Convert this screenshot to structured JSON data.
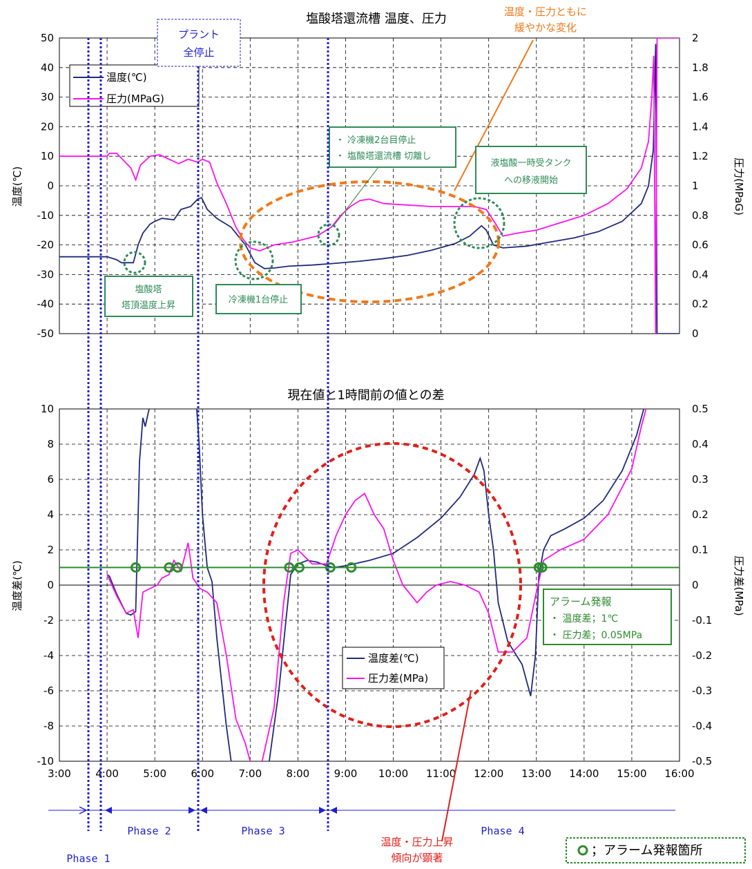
{
  "chart_data": [
    {
      "type": "line",
      "title": "塩酸塔還流槽 温度、圧力",
      "ylabel": "温度(℃)",
      "y2label": "圧力(MPaG)",
      "ylim": [
        -50,
        50
      ],
      "y2lim": [
        0,
        2
      ],
      "yticks": [
        "50",
        "40",
        "30",
        "20",
        "10",
        "0",
        "-10",
        "-20",
        "-30",
        "-40",
        "-50"
      ],
      "y2ticks": [
        "2",
        "1.8",
        "1.6",
        "1.4",
        "1.2",
        "1",
        "0.8",
        "0.6",
        "0.4",
        "0.2",
        "0"
      ],
      "legend_position": "top-left",
      "series": [
        {
          "name": "温度(℃)",
          "color": "#1f2a7a",
          "axis": "left",
          "points": [
            [
              3.0,
              -24
            ],
            [
              3.9,
              -24
            ],
            [
              4.0,
              -24
            ],
            [
              4.2,
              -25
            ],
            [
              4.3,
              -26
            ],
            [
              4.55,
              -26
            ],
            [
              4.65,
              -20
            ],
            [
              4.75,
              -16
            ],
            [
              4.9,
              -13
            ],
            [
              5.0,
              -12
            ],
            [
              5.15,
              -11
            ],
            [
              5.4,
              -11.5
            ],
            [
              5.55,
              -8
            ],
            [
              5.75,
              -7
            ],
            [
              5.9,
              -4.5
            ],
            [
              5.98,
              -4
            ],
            [
              6.1,
              -8
            ],
            [
              6.3,
              -11
            ],
            [
              6.6,
              -14
            ],
            [
              6.9,
              -20
            ],
            [
              7.1,
              -26
            ],
            [
              7.3,
              -28
            ],
            [
              7.5,
              -27.8
            ],
            [
              7.8,
              -27.2
            ],
            [
              8.3,
              -26.8
            ],
            [
              8.8,
              -26.2
            ],
            [
              9.3,
              -25.5
            ],
            [
              9.8,
              -24.6
            ],
            [
              10.3,
              -23.5
            ],
            [
              10.8,
              -21.8
            ],
            [
              11.3,
              -19.5
            ],
            [
              11.6,
              -17
            ],
            [
              11.85,
              -13.5
            ],
            [
              11.95,
              -15
            ],
            [
              12.1,
              -20
            ],
            [
              12.3,
              -21
            ],
            [
              12.8,
              -20.4
            ],
            [
              13.3,
              -19
            ],
            [
              13.8,
              -17.6
            ],
            [
              14.3,
              -15.5
            ],
            [
              14.8,
              -12
            ],
            [
              15.2,
              -6
            ],
            [
              15.35,
              0
            ],
            [
              15.45,
              12
            ],
            [
              15.5,
              48
            ],
            [
              15.53,
              -50
            ],
            [
              16.0,
              -50
            ]
          ]
        },
        {
          "name": "圧力(MPaG)",
          "color": "#ff10f0",
          "axis": "right",
          "points": [
            [
              3.0,
              1.2
            ],
            [
              3.9,
              1.2
            ],
            [
              4.0,
              1.2
            ],
            [
              4.05,
              1.22
            ],
            [
              4.2,
              1.22
            ],
            [
              4.5,
              1.12
            ],
            [
              4.6,
              1.04
            ],
            [
              4.7,
              1.14
            ],
            [
              4.9,
              1.2
            ],
            [
              5.1,
              1.21
            ],
            [
              5.3,
              1.18
            ],
            [
              5.5,
              1.15
            ],
            [
              5.7,
              1.18
            ],
            [
              5.9,
              1.16
            ],
            [
              6.0,
              1.18
            ],
            [
              6.15,
              1.16
            ],
            [
              6.3,
              1.02
            ],
            [
              6.5,
              0.88
            ],
            [
              6.7,
              0.72
            ],
            [
              6.85,
              0.64
            ],
            [
              7.0,
              0.58
            ],
            [
              7.2,
              0.56
            ],
            [
              7.5,
              0.6
            ],
            [
              7.9,
              0.62
            ],
            [
              8.4,
              0.66
            ],
            [
              8.7,
              0.72
            ],
            [
              8.9,
              0.8
            ],
            [
              9.1,
              0.86
            ],
            [
              9.3,
              0.9
            ],
            [
              9.5,
              0.91
            ],
            [
              9.8,
              0.88
            ],
            [
              10.3,
              0.87
            ],
            [
              10.8,
              0.86
            ],
            [
              11.3,
              0.86
            ],
            [
              11.7,
              0.86
            ],
            [
              11.95,
              0.84
            ],
            [
              12.15,
              0.74
            ],
            [
              12.3,
              0.66
            ],
            [
              12.6,
              0.68
            ],
            [
              13.0,
              0.7
            ],
            [
              13.5,
              0.75
            ],
            [
              14.0,
              0.8
            ],
            [
              14.5,
              0.88
            ],
            [
              14.9,
              0.98
            ],
            [
              15.2,
              1.12
            ],
            [
              15.35,
              1.3
            ],
            [
              15.42,
              1.6
            ],
            [
              15.46,
              1.88
            ],
            [
              15.5,
              0
            ],
            [
              15.53,
              2.0
            ],
            [
              16.0,
              2.0
            ]
          ]
        }
      ]
    },
    {
      "type": "line",
      "title": "現在値と1時間前の値との差",
      "ylabel": "温度差(℃)",
      "y2label": "圧力差(MPa)",
      "ylim": [
        -10,
        10
      ],
      "y2lim": [
        -0.5,
        0.5
      ],
      "yticks": [
        "10",
        "8",
        "6",
        "4",
        "2",
        "0",
        "-2",
        "-4",
        "-6",
        "-8",
        "-10"
      ],
      "y2ticks": [
        "0.5",
        "0.4",
        "0.3",
        "0.2",
        "0.1",
        "0",
        "-0.1",
        "-0.2",
        "-0.3",
        "-0.4",
        "-0.5"
      ],
      "xticks": [
        "3:00",
        "4:00",
        "5:00",
        "6:00",
        "7:00",
        "8:00",
        "9:00",
        "10:00",
        "11:00",
        "12:00",
        "13:00",
        "14:00",
        "15:00",
        "16:00"
      ],
      "alarm_threshold": 1,
      "legend_position": "bottom-center",
      "series": [
        {
          "name": "温度差(℃)",
          "color": "#1f2a7a",
          "axis": "left",
          "points": [
            [
              4.0,
              0.6
            ],
            [
              4.05,
              0.5
            ],
            [
              4.2,
              -0.5
            ],
            [
              4.4,
              -1.6
            ],
            [
              4.5,
              -1.7
            ],
            [
              4.6,
              -1.5
            ],
            [
              4.68,
              7
            ],
            [
              4.75,
              9.5
            ],
            [
              4.8,
              9
            ],
            [
              4.88,
              10
            ]
          ]
        },
        {
          "name": "温度差(℃) b",
          "color": "#1f2a7a",
          "axis": "left",
          "points": [
            [
              5.88,
              10
            ],
            [
              5.93,
              8
            ],
            [
              6.0,
              4
            ],
            [
              6.1,
              1
            ],
            [
              6.2,
              0.2
            ],
            [
              6.3,
              -3
            ],
            [
              6.5,
              -8
            ],
            [
              6.6,
              -10
            ]
          ]
        },
        {
          "name": "温度差(℃) c",
          "color": "#1f2a7a",
          "axis": "left",
          "points": [
            [
              7.4,
              -10
            ],
            [
              7.6,
              -6
            ],
            [
              7.75,
              -2
            ],
            [
              7.85,
              0.6
            ],
            [
              8.0,
              1.2
            ],
            [
              8.2,
              1.4
            ],
            [
              8.4,
              1.3
            ],
            [
              8.6,
              1.1
            ],
            [
              8.75,
              1.0
            ],
            [
              9.0,
              1.1
            ],
            [
              9.5,
              1.4
            ],
            [
              10.0,
              1.8
            ],
            [
              10.5,
              2.7
            ],
            [
              11.0,
              3.8
            ],
            [
              11.4,
              5.0
            ],
            [
              11.7,
              6.3
            ],
            [
              11.82,
              7.2
            ],
            [
              11.9,
              6.5
            ],
            [
              12.0,
              4
            ],
            [
              12.1,
              2
            ],
            [
              12.2,
              -1
            ],
            [
              12.4,
              -3.2
            ],
            [
              12.7,
              -4.5
            ],
            [
              12.88,
              -6.3
            ],
            [
              12.98,
              -4
            ],
            [
              13.05,
              0.5
            ],
            [
              13.15,
              2
            ],
            [
              13.3,
              2.8
            ],
            [
              13.6,
              3.2
            ],
            [
              14.0,
              3.8
            ],
            [
              14.4,
              4.8
            ],
            [
              14.8,
              6.5
            ],
            [
              15.1,
              8.5
            ],
            [
              15.25,
              10
            ]
          ]
        },
        {
          "name": "圧力差(MPa)",
          "color": "#ff10f0",
          "axis": "right",
          "points": [
            [
              4.0,
              0.03
            ],
            [
              4.2,
              -0.03
            ],
            [
              4.4,
              -0.08
            ],
            [
              4.55,
              -0.07
            ],
            [
              4.65,
              -0.15
            ],
            [
              4.75,
              -0.02
            ],
            [
              4.9,
              -0.01
            ],
            [
              5.05,
              0.0
            ],
            [
              5.15,
              0.02
            ],
            [
              5.3,
              0.03
            ],
            [
              5.4,
              0.07
            ],
            [
              5.55,
              0.04
            ],
            [
              5.7,
              0.12
            ],
            [
              5.8,
              0.02
            ],
            [
              5.95,
              -0.01
            ],
            [
              6.1,
              -0.02
            ],
            [
              6.3,
              -0.05
            ],
            [
              6.5,
              -0.2
            ],
            [
              6.7,
              -0.38
            ],
            [
              6.9,
              -0.45
            ],
            [
              7.0,
              -0.5
            ]
          ]
        },
        {
          "name": "圧力差(MPa) b",
          "color": "#ff10f0",
          "axis": "right",
          "points": [
            [
              7.25,
              -0.5
            ],
            [
              7.5,
              -0.35
            ],
            [
              7.7,
              -0.05
            ],
            [
              7.85,
              0.09
            ],
            [
              8.0,
              0.1
            ],
            [
              8.15,
              0.08
            ],
            [
              8.3,
              0.06
            ],
            [
              8.6,
              0.06
            ],
            [
              8.8,
              0.14
            ],
            [
              9.0,
              0.2
            ],
            [
              9.2,
              0.24
            ],
            [
              9.4,
              0.26
            ],
            [
              9.6,
              0.2
            ],
            [
              9.8,
              0.16
            ],
            [
              10.0,
              0.07
            ],
            [
              10.2,
              0.0
            ],
            [
              10.5,
              -0.05
            ],
            [
              10.7,
              -0.02
            ],
            [
              10.9,
              0.0
            ],
            [
              11.2,
              0.01
            ],
            [
              11.5,
              0.0
            ],
            [
              11.8,
              -0.02
            ],
            [
              12.0,
              -0.08
            ],
            [
              12.2,
              -0.19
            ],
            [
              12.5,
              -0.19
            ],
            [
              12.8,
              -0.15
            ],
            [
              13.0,
              -0.02
            ],
            [
              13.15,
              0.07
            ],
            [
              13.5,
              0.1
            ],
            [
              14.0,
              0.13
            ],
            [
              14.5,
              0.2
            ],
            [
              15.0,
              0.33
            ],
            [
              15.2,
              0.45
            ],
            [
              15.3,
              0.5
            ]
          ]
        }
      ],
      "alarm_points_x": [
        4.6,
        5.3,
        5.48,
        7.82,
        8.03,
        8.68,
        9.12,
        13.05,
        13.12
      ]
    }
  ],
  "annotations": {
    "plant_stop_1": "プラント",
    "plant_stop_2": "全停止",
    "gentle_1": "温度・圧力ともに",
    "gentle_2": "緩やかな変化",
    "cooler2_1": "・ 冷凍機2台目停止",
    "cooler2_2": "・ 塩酸塔還流槽 切離し",
    "tank_1": "液塩酸一時受タンク",
    "tank_2": "への移液開始",
    "tower_1": "塩酸塔",
    "tower_2": "塔頂温度上昇",
    "cooler1": "冷凍機1台停止",
    "alarm_title": "アラーム発報",
    "alarm_temp": "・ 温度差；1℃",
    "alarm_press": "・ 圧力差；0.05MPa",
    "rise_1": "温度・圧力上昇",
    "rise_2": "傾向が顕著",
    "alarm_legend": "；アラーム発報箇所"
  },
  "phases": [
    "Phase 1",
    "Phase 2",
    "Phase 3",
    "Phase 4"
  ],
  "colors": {
    "temp": "#1f2a7a",
    "press": "#ff10f0",
    "alarm": "#2e8b2e",
    "annot_green": "#2e8b57",
    "phase_blue": "#1f1fd0",
    "orange": "#f07a1a",
    "red": "#e0201a"
  }
}
